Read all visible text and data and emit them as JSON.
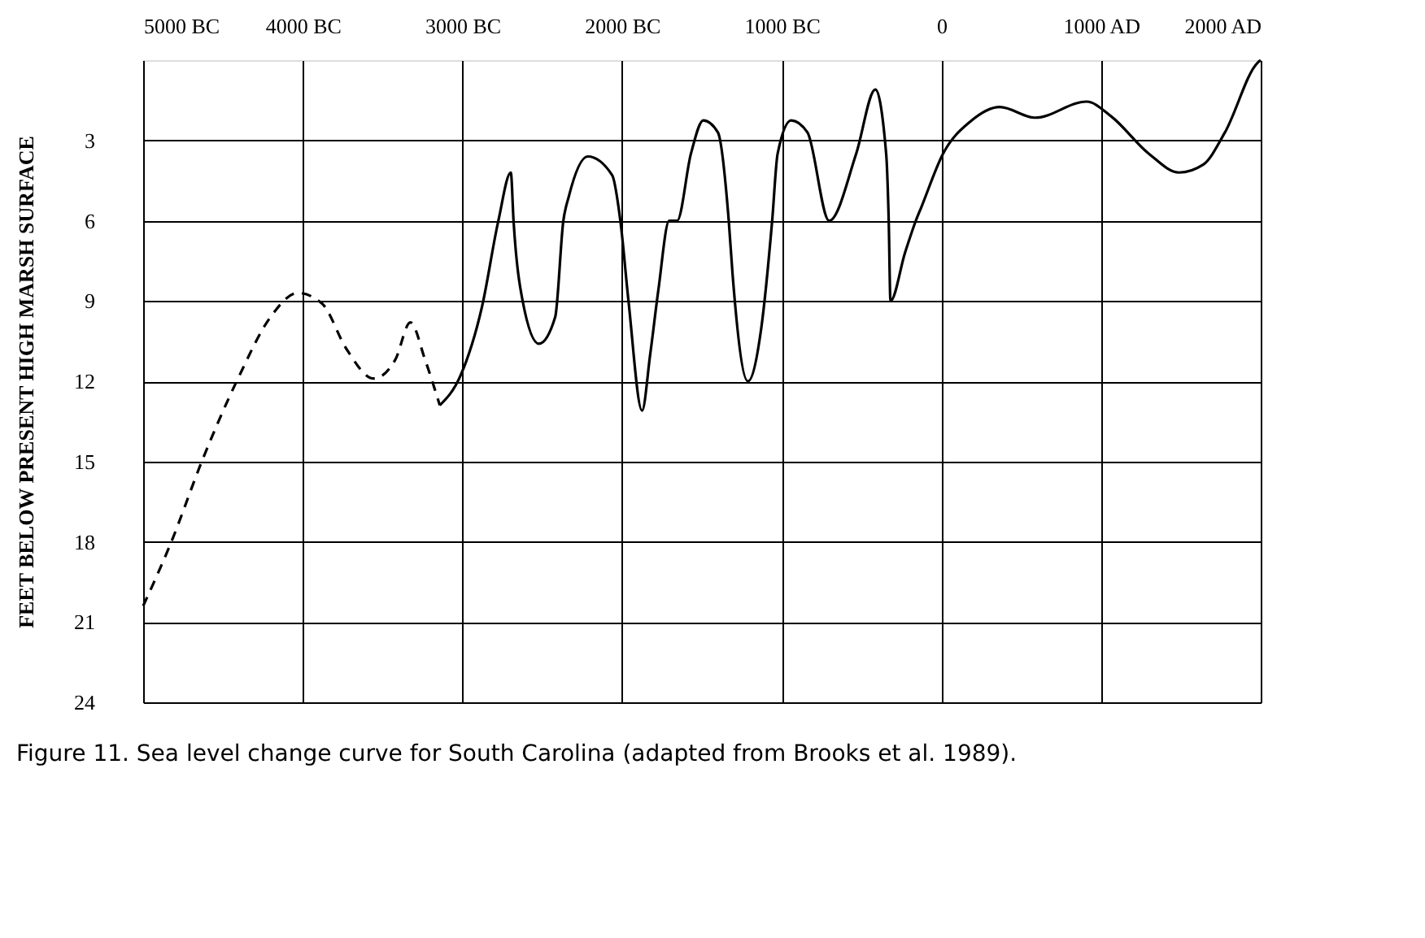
{
  "chart_data": {
    "type": "line",
    "ylabel": "FEET BELOW PRESENT HIGH MARSH SURFACE",
    "annotations": [
      "Figure 11. Sea level change curve for South Carolina (adapted from Brooks et al. 1989)."
    ],
    "xlim": [
      -5000,
      2000
    ],
    "xticks": [
      {
        "value": -5000,
        "label": "5000 BC"
      },
      {
        "value": -4000,
        "label": "4000 BC"
      },
      {
        "value": -3000,
        "label": "3000 BC"
      },
      {
        "value": -2000,
        "label": "2000 BC"
      },
      {
        "value": -1000,
        "label": "1000 BC"
      },
      0,
      {
        "value": 1000,
        "label": "1000 AD"
      },
      {
        "value": 2000,
        "label": "2000 AD"
      }
    ],
    "ylim": [
      24,
      0
    ],
    "yticks": [
      3,
      6,
      9,
      12,
      15,
      18,
      21,
      24
    ],
    "grid": true,
    "marker": "none",
    "series": [
      {
        "color": "#000000",
        "line_style": "dashed",
        "x": [
          -5000,
          -4830,
          -4626,
          -4406,
          -4202,
          -4032,
          -3879,
          -3726,
          -3556,
          -3421,
          -3326,
          -3234,
          -3142
        ],
        "values": [
          20.4,
          18.1,
          14.9,
          11.9,
          9.6,
          8.7,
          9.1,
          10.8,
          11.9,
          11.2,
          9.8,
          11.2,
          12.9
        ]
      },
      {
        "color": "#000000",
        "line_style": "solid",
        "x": [
          -3142,
          -3013,
          -2877,
          -2775,
          -2697,
          -2680,
          -2623,
          -2521,
          -2419,
          -2368,
          -2334,
          -2215,
          -2062,
          -2011,
          -1960,
          -1875,
          -1824,
          -1773,
          -1705,
          -1655,
          -1569,
          -1491,
          -1400,
          -1332,
          -1308,
          -1212,
          -1128,
          -1060,
          -1026,
          -941,
          -839,
          -703,
          -534,
          -414,
          -346,
          -330,
          -319,
          -228,
          -160,
          -126,
          10,
          180,
          366,
          587,
          910,
          1063,
          1300,
          1488,
          1641,
          1776,
          1980,
          2000
        ],
        "values": [
          12.9,
          11.8,
          9.2,
          6.0,
          4.2,
          6.0,
          9.0,
          10.6,
          9.6,
          6.0,
          5.1,
          3.6,
          4.3,
          6.0,
          9.0,
          13.1,
          11.0,
          8.6,
          6.0,
          6.0,
          3.5,
          2.25,
          2.7,
          6.0,
          8.0,
          12.0,
          10.0,
          6.0,
          3.5,
          2.25,
          2.7,
          6.0,
          3.5,
          1.1,
          3.5,
          6.0,
          9.0,
          7.2,
          6.0,
          5.5,
          3.5,
          2.3,
          1.75,
          2.15,
          1.55,
          2.1,
          3.5,
          4.2,
          3.9,
          2.7,
          0.1,
          0.0
        ]
      }
    ]
  }
}
